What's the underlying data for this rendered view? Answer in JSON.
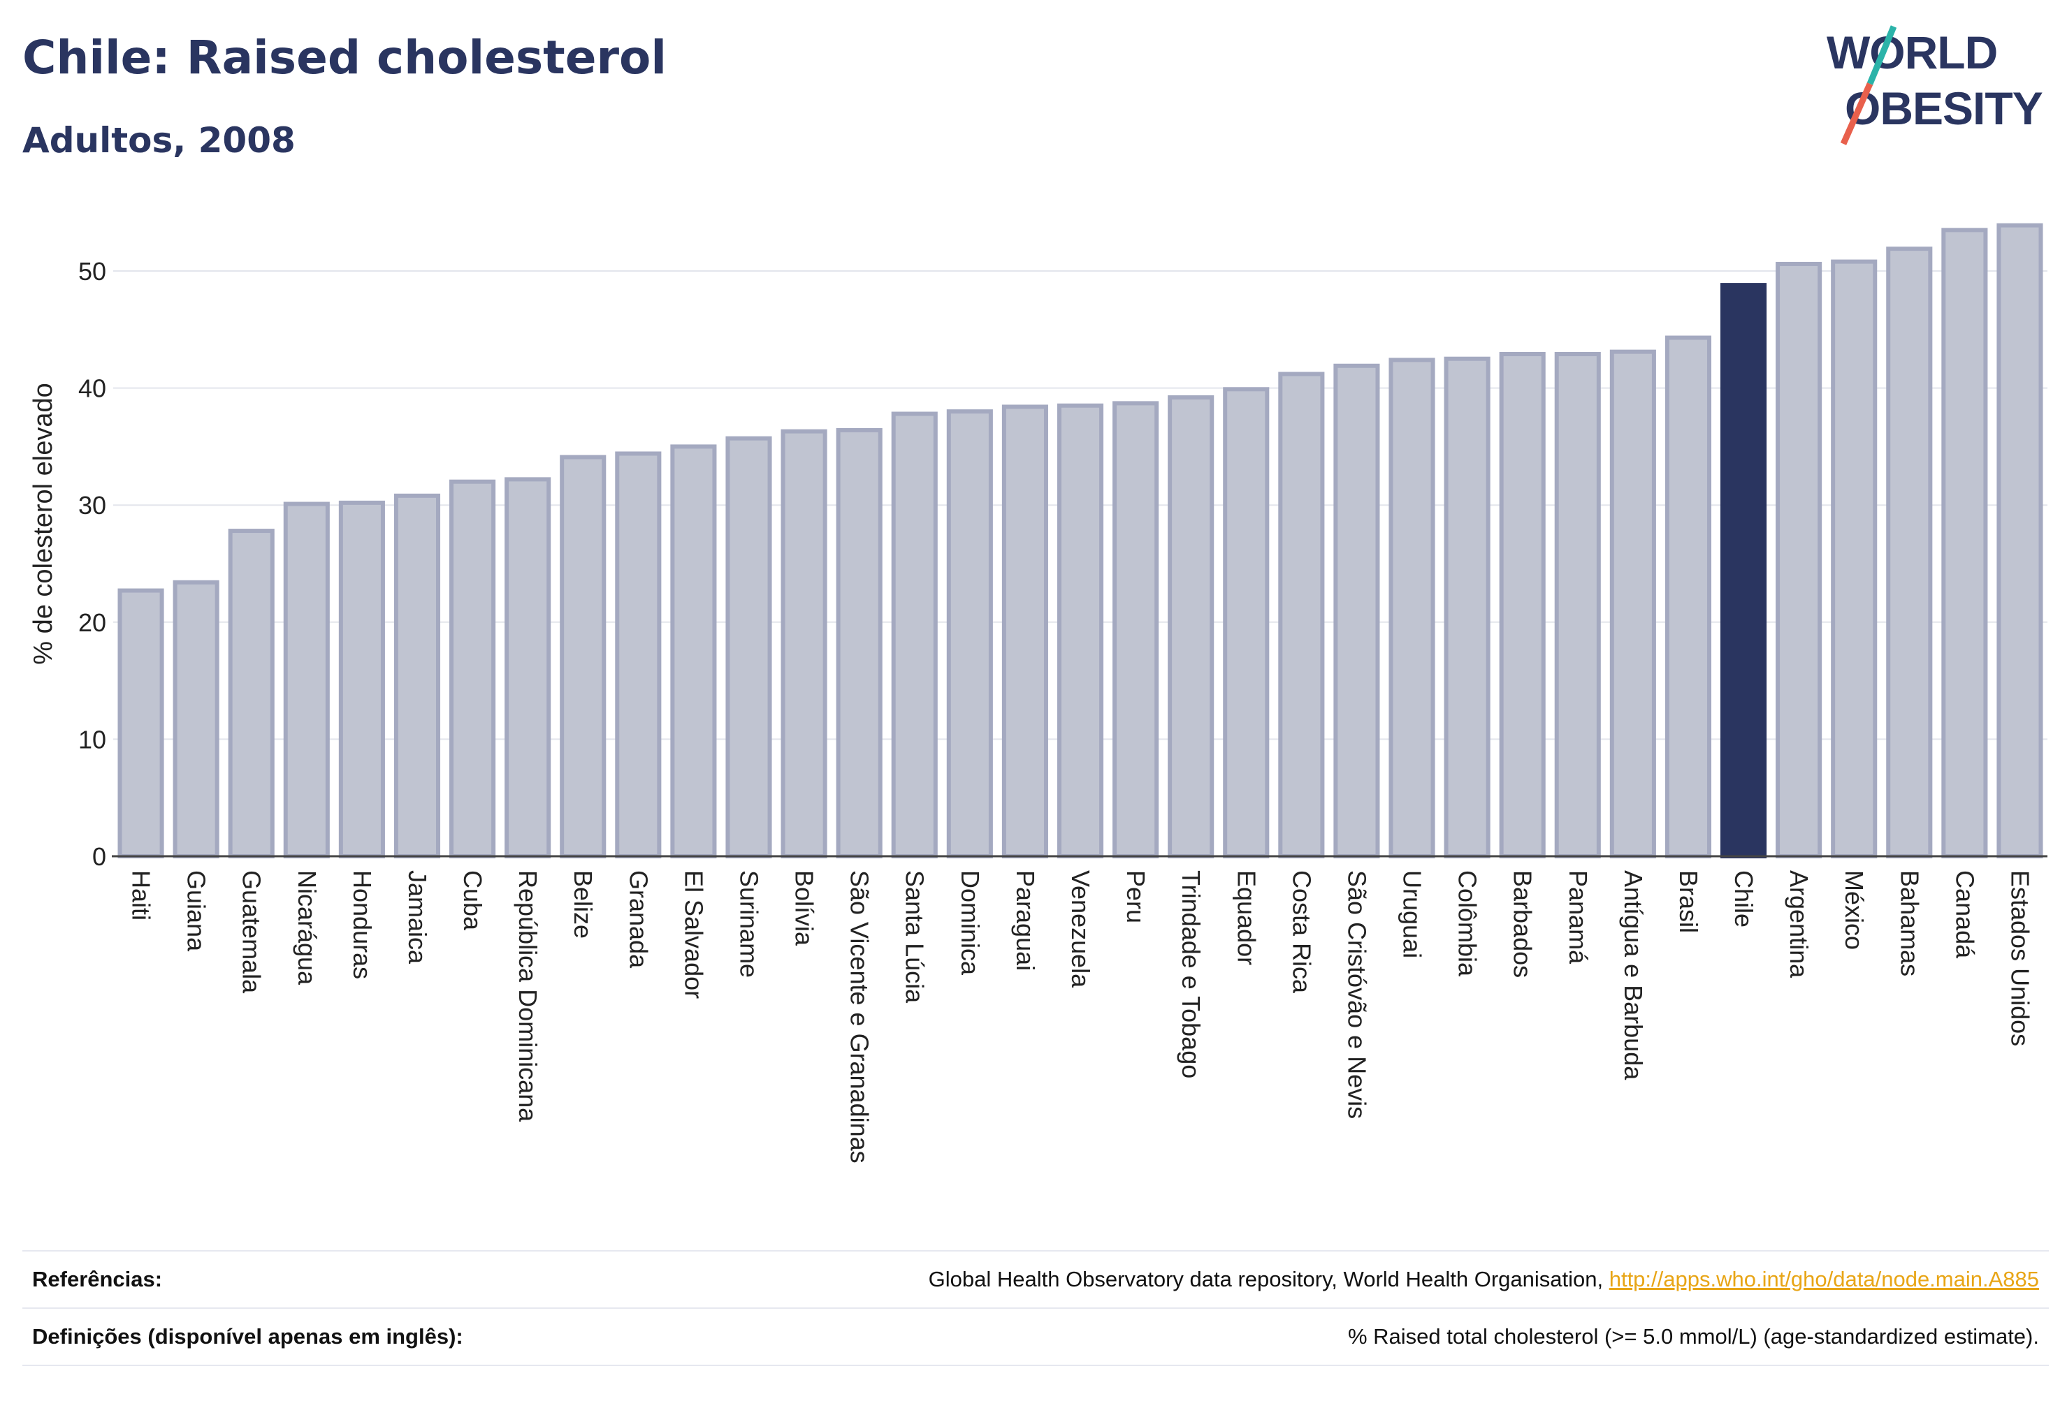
{
  "header": {
    "title": "Chile: Raised cholesterol",
    "subtitle": "Adultos, 2008"
  },
  "logo": {
    "line1": "WORLD",
    "line2": "OBESITY"
  },
  "colors": {
    "bar_default": "#c0c4d1",
    "bar_default_border": "#a4a9c0",
    "bar_highlight": "#2a3560",
    "grid": "#e3e5ec",
    "logo_text": "#2a3560",
    "logo_slash_teal": "#2bb3a9",
    "logo_slash_red": "#e8604c"
  },
  "chart_data": {
    "type": "bar",
    "title": "",
    "ylabel": "% de colesterol elevado",
    "xlabel": "",
    "ylim": [
      0,
      55
    ],
    "yticks": [
      0,
      10,
      20,
      30,
      40,
      50
    ],
    "grid": true,
    "highlight": "Chile",
    "categories": [
      "Haiti",
      "Guiana",
      "Guatemala",
      "Nicarágua",
      "Honduras",
      "Jamaica",
      "Cuba",
      "República Dominicana",
      "Belize",
      "Granada",
      "El Salvador",
      "Suriname",
      "Bolívia",
      "São Vicente e Granadinas",
      "Santa Lúcia",
      "Dominica",
      "Paraguai",
      "Venezuela",
      "Peru",
      "Trindade e Tobago",
      "Equador",
      "Costa Rica",
      "São Cristóvão e Nevis",
      "Uruguai",
      "Colômbia",
      "Barbados",
      "Panamá",
      "Antígua e Barbuda",
      "Brasil",
      "Chile",
      "Argentina",
      "México",
      "Bahamas",
      "Canadá",
      "Estados Unidos"
    ],
    "values": [
      22.7,
      23.4,
      27.8,
      30.1,
      30.2,
      30.8,
      32.0,
      32.2,
      34.1,
      34.4,
      35.0,
      35.7,
      36.3,
      36.4,
      37.8,
      38.0,
      38.4,
      38.5,
      38.7,
      39.2,
      39.9,
      41.2,
      41.9,
      42.4,
      42.5,
      42.9,
      42.9,
      43.1,
      44.3,
      48.8,
      50.6,
      50.8,
      51.9,
      53.5,
      53.9
    ]
  },
  "footer": {
    "references_label": "Referências:",
    "references_text": "Global Health Observatory data repository, World Health Organisation, ",
    "references_link": "http://apps.who.int/gho/data/node.main.A885",
    "definitions_label": "Definições (disponível apenas em inglês):",
    "definitions_text": "% Raised total cholesterol (>= 5.0 mmol/L) (age-standardized estimate)."
  }
}
